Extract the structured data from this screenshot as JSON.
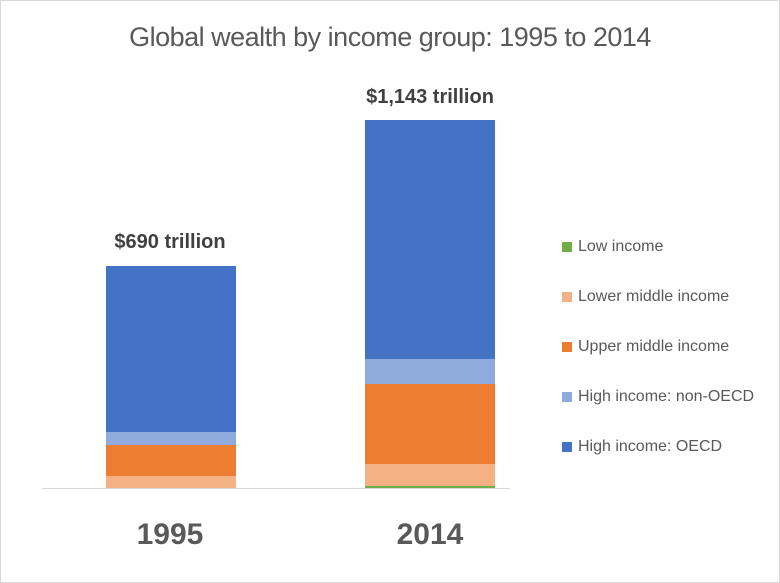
{
  "chart_data": {
    "type": "bar",
    "stacked": true,
    "title": "Global wealth by income group: 1995 to 2014",
    "categories": [
      "1995",
      "2014"
    ],
    "totals_labels": [
      "$690 trillion",
      "$1,143 trillion"
    ],
    "totals": [
      690,
      1143
    ],
    "unit": "trillion USD",
    "series": [
      {
        "name": "Low income",
        "color": "#70ad47",
        "values": [
          1,
          6
        ]
      },
      {
        "name": "Lower middle income",
        "color": "#f4b183",
        "values": [
          37,
          68
        ]
      },
      {
        "name": "Upper middle income",
        "color": "#ed7d31",
        "values": [
          96,
          249
        ]
      },
      {
        "name": "High income: non-OECD",
        "color": "#8faadc",
        "values": [
          40,
          78
        ]
      },
      {
        "name": "High income: OECD",
        "color": "#4472c4",
        "values": [
          516,
          742
        ]
      }
    ],
    "xlabel": "",
    "ylabel": "",
    "grid": false,
    "legend_position": "right"
  },
  "labels": {
    "title": "Global wealth by income group: 1995 to 2014",
    "total_1995": "$690 trillion",
    "total_2014": "$1,143 trillion",
    "x_1995": "1995",
    "x_2014": "2014"
  }
}
